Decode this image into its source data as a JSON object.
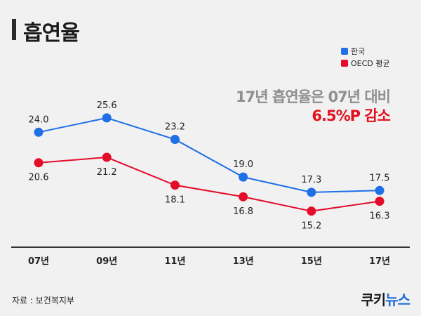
{
  "title": "흡연율",
  "headline": {
    "line1": "17년 흡연율은 07년 대비",
    "line2": "6.5%P 감소"
  },
  "source": "자료 : 보건복지부",
  "logo": {
    "part1": "쿠키",
    "part2": "뉴스"
  },
  "colors": {
    "korea": "#1f6fe6",
    "oecd": "#e50c2a",
    "axis": "#333333"
  },
  "chart_data": {
    "type": "line",
    "categories": [
      "07년",
      "09년",
      "11년",
      "13년",
      "15년",
      "17년"
    ],
    "series": [
      {
        "name": "한국",
        "values": [
          24.0,
          25.6,
          23.2,
          19.0,
          17.3,
          17.5
        ],
        "labels": [
          "24.0",
          "25.6",
          "23.2",
          "19.0",
          "17.3",
          "17.5"
        ]
      },
      {
        "name": "OECD 평균",
        "values": [
          20.6,
          21.2,
          18.1,
          16.8,
          15.2,
          16.3
        ],
        "labels": [
          "20.6",
          "21.2",
          "18.1",
          "16.8",
          "15.2",
          "16.3"
        ]
      }
    ],
    "legend": "top-right",
    "grid": false,
    "ylim": [
      14,
      27
    ]
  }
}
